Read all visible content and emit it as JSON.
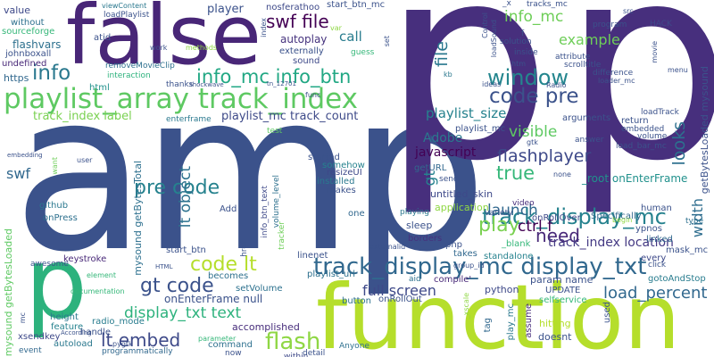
{
  "words": [
    {
      "id": "amp",
      "text": "amp",
      "color": "#3b528b"
    },
    {
      "id": "p_big",
      "text": "p p",
      "color": "#472f7d"
    },
    {
      "id": "false",
      "text": "false",
      "color": "#482677"
    },
    {
      "id": "function",
      "text": "function",
      "color": "#b5de2b"
    },
    {
      "id": "p_small",
      "text": "p",
      "color": "#2db27d"
    },
    {
      "id": "playlist_array_track_index",
      "text": "playlist_array track_index",
      "color": "#5ec962"
    },
    {
      "id": "track_display_mc_display_txt",
      "text": "track_display_mc display_txt",
      "color": "#31688e"
    },
    {
      "id": "track_display_mc",
      "text": "track_display_mc",
      "color": "#26828e"
    },
    {
      "id": "info_mc_info_btn",
      "text": "info_mc info_btn",
      "color": "#22a884"
    },
    {
      "id": "code_pre",
      "text": "code pre",
      "color": "#3b528b"
    },
    {
      "id": "swf_file",
      "text": "swf file",
      "color": "#440154"
    },
    {
      "id": "info",
      "text": "info",
      "color": "#2a788e"
    },
    {
      "id": "window",
      "text": "window",
      "color": "#24868e"
    },
    {
      "id": "flashplayer",
      "text": "flashplayer",
      "color": "#3e4989"
    },
    {
      "id": "need",
      "text": "need",
      "color": "#482878"
    },
    {
      "id": "flash",
      "text": "flash",
      "color": "#8fd744"
    },
    {
      "id": "lt_embed",
      "text": "lt embed",
      "color": "#3e4a89"
    },
    {
      "id": "code_lt",
      "text": "code lt",
      "color": "#b5de2b"
    },
    {
      "id": "gt_code",
      "text": "gt code",
      "color": "#3b528b"
    },
    {
      "id": "pre_code",
      "text": "pre code",
      "color": "#26828e"
    },
    {
      "id": "lt_object",
      "text": "lt object",
      "color": "#2c718e"
    },
    {
      "id": "play",
      "text": "play",
      "color": "#7ad151"
    },
    {
      "id": "ctrl_f",
      "text": "ctrl f",
      "color": "#440154"
    },
    {
      "id": "true",
      "text": "true",
      "color": "#35b779"
    },
    {
      "id": "visible",
      "text": "visible",
      "color": "#5ec962"
    },
    {
      "id": "launch",
      "text": "launch",
      "color": "#31688e"
    },
    {
      "id": "track_index_location",
      "text": "track_index location",
      "color": "#443983"
    },
    {
      "id": "display_txt_text",
      "text": "display_txt text",
      "color": "#2db27d"
    },
    {
      "id": "full_screen",
      "text": "full screen",
      "color": "#3e4989"
    },
    {
      "id": "load_percent",
      "text": "load_percent",
      "color": "#31688e"
    },
    {
      "id": "playlist_size",
      "text": "playlist_size",
      "color": "#26828e"
    },
    {
      "id": "example",
      "text": "example",
      "color": "#6ece58"
    },
    {
      "id": "info_mc",
      "text": "info_mc",
      "color": "#6ece58"
    },
    {
      "id": "call",
      "text": "call",
      "color": "#287c8e"
    },
    {
      "id": "javascript",
      "text": "javascript",
      "color": "#440154"
    },
    {
      "id": "adobe",
      "text": "Adobe",
      "color": "#2a788e"
    },
    {
      "id": "file",
      "text": "file",
      "color": "#2a788e"
    },
    {
      "id": "looks",
      "text": "looks",
      "color": "#2d708e"
    },
    {
      "id": "width",
      "text": "width",
      "color": "#2e6d8e"
    },
    {
      "id": "swf",
      "text": "swf",
      "color": "#31688e"
    },
    {
      "id": "gt",
      "text": "gt",
      "color": "#26828e"
    },
    {
      "id": "onenterframe_null",
      "text": "onEnterFrame null",
      "color": "#3b528b"
    },
    {
      "id": "track_index_label",
      "text": "track_index label",
      "color": "#7ad151"
    },
    {
      "id": "playlist_mc_track_count",
      "text": "playlist_mc track_count",
      "color": "#3e4a89"
    },
    {
      "id": "root_onenterframe",
      "text": "_root onEnterFrame",
      "color": "#21918c"
    },
    {
      "id": "player",
      "text": "player",
      "color": "#3b528b"
    },
    {
      "id": "autoplay",
      "text": "autoplay",
      "color": "#46337e"
    },
    {
      "id": "untitled_skin",
      "text": "untitled_skin",
      "color": "#3e4989"
    },
    {
      "id": "mysound_getbytesloaded",
      "text": "mysound getBytesLoaded",
      "color": "#5ec962"
    },
    {
      "id": "mysound_getbytestotal",
      "text": "mysound getBytesTotal",
      "color": "#2d708e"
    },
    {
      "id": "getbytesloaded_mysound",
      "text": "getBytesLoaded mysound",
      "color": "#3b528b"
    },
    {
      "id": "flashvars",
      "text": "flashvars",
      "color": "#2d708e"
    },
    {
      "id": "value",
      "text": "value",
      "color": "#3e4989"
    },
    {
      "id": "html",
      "text": "html",
      "color": "#21918c"
    },
    {
      "id": "https",
      "text": "https",
      "color": "#31688e"
    },
    {
      "id": "undefined",
      "text": "undefined",
      "color": "#482878"
    },
    {
      "id": "sourceforge",
      "text": "sourceforge",
      "color": "#35b779"
    },
    {
      "id": "without",
      "text": "without",
      "color": "#2d708e"
    },
    {
      "id": "johnboxall",
      "text": "johnboxall",
      "color": "#3b528b"
    },
    {
      "id": "github",
      "text": "github",
      "color": "#2a788e"
    },
    {
      "id": "onpress",
      "text": "onPress",
      "color": "#2d708e"
    },
    {
      "id": "keystroke",
      "text": "keystroke",
      "color": "#482878"
    },
    {
      "id": "awesome",
      "text": "awesome",
      "color": "#3b528b"
    },
    {
      "id": "height",
      "text": "height",
      "color": "#2a788e"
    },
    {
      "id": "feature",
      "text": "feature",
      "color": "#26828e"
    },
    {
      "id": "xsendkey",
      "text": "xsendkey",
      "color": "#3e4989"
    },
    {
      "id": "event",
      "text": "event",
      "color": "#31688e"
    },
    {
      "id": "autoload",
      "text": "autoload",
      "color": "#2a788e"
    },
    {
      "id": "programmatically",
      "text": "programmatically",
      "color": "#31688e"
    },
    {
      "id": "command",
      "text": "command",
      "color": "#2d708e"
    },
    {
      "id": "accomplished",
      "text": "accomplished",
      "color": "#472d7b"
    },
    {
      "id": "radio_mode",
      "text": "radio_mode",
      "color": "#287c8e"
    },
    {
      "id": "handle",
      "text": "handle",
      "color": "#3b528b"
    },
    {
      "id": "setvolume",
      "text": "setVolume",
      "color": "#2c718e"
    },
    {
      "id": "becomes",
      "text": "becomes",
      "color": "#2d708e"
    },
    {
      "id": "start_btn",
      "text": "start_btn",
      "color": "#3b528b"
    },
    {
      "id": "linenet",
      "text": "linenet",
      "color": "#3b528b"
    },
    {
      "id": "playlist_url",
      "text": "playlist_url",
      "color": "#2d708e"
    },
    {
      "id": "sleep",
      "text": "sleep",
      "color": "#3b528b"
    },
    {
      "id": "one",
      "text": "one",
      "color": "#31688e"
    },
    {
      "id": "borders",
      "text": "borders",
      "color": "#46337e"
    },
    {
      "id": "php",
      "text": "php",
      "color": "#3b528b"
    },
    {
      "id": "takes",
      "text": "takes",
      "color": "#31688e"
    },
    {
      "id": "standalone",
      "text": "standalone",
      "color": "#26828e"
    },
    {
      "id": "blank",
      "text": "_blank",
      "color": "#35b779"
    },
    {
      "id": "python",
      "text": "python",
      "color": "#3e4989"
    },
    {
      "id": "update",
      "text": "UPDATE",
      "color": "#3b528b"
    },
    {
      "id": "param_name",
      "text": "param name",
      "color": "#3b528b"
    },
    {
      "id": "compile",
      "text": "compile'",
      "color": "#482878"
    },
    {
      "id": "aid",
      "text": "aid",
      "color": "#2d708e"
    },
    {
      "id": "button",
      "text": "button",
      "color": "#2d708e"
    },
    {
      "id": "onrollout",
      "text": "onRollOut",
      "color": "#3b528b"
    },
    {
      "id": "application",
      "text": "application",
      "color": "#8fd744"
    },
    {
      "id": "makes",
      "text": "makes",
      "color": "#3b528b"
    },
    {
      "id": "installed",
      "text": "installed",
      "color": "#2a788e"
    },
    {
      "id": "resizeui",
      "text": "resizeUI",
      "color": "#3e4989"
    },
    {
      "id": "started",
      "text": "started",
      "color": "#3b528b"
    },
    {
      "id": "somehow",
      "text": "somehow",
      "color": "#26828e"
    },
    {
      "id": "send",
      "text": "send",
      "color": "#3b528b"
    },
    {
      "id": "geturl",
      "text": "getURL",
      "color": "#31688e"
    },
    {
      "id": "playing",
      "text": "playing",
      "color": "#2a788e"
    },
    {
      "id": "video",
      "text": "video",
      "color": "#472d7b"
    },
    {
      "id": "variety",
      "text": "variety",
      "color": "#3b528b"
    },
    {
      "id": "onrollover",
      "text": "onRollOver",
      "color": "#3e4989"
    },
    {
      "id": "ypnos",
      "text": "ypnos",
      "color": "#3b528b"
    },
    {
      "id": "linked",
      "text": "linked",
      "color": "#31688e"
    },
    {
      "id": "human",
      "text": "human",
      "color": "#3b528b"
    },
    {
      "id": "specifically",
      "text": "Specifically",
      "color": "#31688e"
    },
    {
      "id": "type",
      "text": "type",
      "color": "#2d708e"
    },
    {
      "id": "every",
      "text": "every",
      "color": "#3e4989"
    },
    {
      "id": "mask_mc",
      "text": "mask_mc",
      "color": "#3b528b"
    },
    {
      "id": "click",
      "text": "click",
      "color": "#3b528b"
    },
    {
      "id": "gotoandstop",
      "text": "gotoAndStop",
      "color": "#287c8e"
    },
    {
      "id": "selfservice",
      "text": "selfservice",
      "color": "#35b779"
    },
    {
      "id": "hitting",
      "text": "hitting",
      "color": "#b5de2b"
    },
    {
      "id": "doesnt",
      "text": "doesnt",
      "color": "#3b528b"
    },
    {
      "id": "assume",
      "text": "assume",
      "color": "#472d7b"
    },
    {
      "id": "anyone",
      "text": "Anyone",
      "color": "#2d708e"
    },
    {
      "id": "tag",
      "text": "tag",
      "color": "#31688e"
    },
    {
      "id": "play_mc",
      "text": "play_mc",
      "color": "#2a788e"
    },
    {
      "id": "used",
      "text": "used",
      "color": "#3b528b"
    },
    {
      "id": "externally",
      "text": "externally",
      "color": "#3b528b"
    },
    {
      "id": "sound",
      "text": "sound",
      "color": "#3e4989"
    },
    {
      "id": "within",
      "text": "within",
      "color": "#3e4989"
    },
    {
      "id": "detail",
      "text": "detail",
      "color": "#3b528b"
    },
    {
      "id": "now",
      "text": "now",
      "color": "#3b528b"
    },
    {
      "id": "parameter",
      "text": "parameter",
      "color": "#35b779"
    },
    {
      "id": "nosferathoo",
      "text": "nosferathoo",
      "color": "#3e4989"
    },
    {
      "id": "start_btn_mc",
      "text": "start_btn_mc",
      "color": "#3b528b"
    },
    {
      "id": "viewcontent",
      "text": "viewContent",
      "color": "#2a788e"
    },
    {
      "id": "loadplaylist",
      "text": "loadPlaylist",
      "color": "#3b528b"
    },
    {
      "id": "atid",
      "text": "atid",
      "color": "#3b528b"
    },
    {
      "id": "work",
      "text": "work",
      "color": "#3b528b"
    },
    {
      "id": "methods",
      "text": "methods",
      "color": "#8fd744"
    },
    {
      "id": "removemovieclip",
      "text": "removeMovieClip",
      "color": "#2d708e"
    },
    {
      "id": "interaction",
      "text": "interaction",
      "color": "#2db27d"
    },
    {
      "id": "thanks",
      "text": "thanks",
      "color": "#3b528b"
    },
    {
      "id": "shockwave",
      "text": "shockwave",
      "color": "#3b528b"
    },
    {
      "id": "tn_12701",
      "text": "tn_12701",
      "color": "#3b528b"
    },
    {
      "id": "guess",
      "text": "guess",
      "color": "#35b779"
    },
    {
      "id": "enterframe",
      "text": "enterframe",
      "color": "#2a788e"
    },
    {
      "id": "test",
      "text": "test",
      "color": "#5ec962"
    },
    {
      "id": "embedding",
      "text": "embedding",
      "color": "#3b528b"
    },
    {
      "id": "user",
      "text": "user",
      "color": "#3b528b"
    },
    {
      "id": "want",
      "text": "want",
      "color": "#6ece58"
    },
    {
      "id": "add",
      "text": "Add",
      "color": "#3b528b"
    },
    {
      "id": "info_btn_text",
      "text": "info_btn_text",
      "color": "#3e4989"
    },
    {
      "id": "volume_level",
      "text": "volume_level",
      "color": "#2d708e"
    },
    {
      "id": "tracker",
      "text": "tracker",
      "color": "#6ece58"
    },
    {
      "id": "href",
      "text": "href",
      "color": "#3b528b"
    },
    {
      "id": "kb",
      "text": "kb",
      "color": "#2a788e"
    },
    {
      "id": "ideas",
      "text": "ideas",
      "color": "#3b528b"
    },
    {
      "id": "radio",
      "text": "Radio",
      "color": "#3b528b"
    },
    {
      "id": "htm",
      "text": "htm",
      "color": "#3b528b"
    },
    {
      "id": "solution",
      "text": "solution",
      "color": "#3b528b"
    },
    {
      "id": "inside",
      "text": "inside",
      "color": "#3b528b"
    },
    {
      "id": "attribute",
      "text": "attribute",
      "color": "#3b528b"
    },
    {
      "id": "scrolltitle",
      "text": "scrolltitle",
      "color": "#3b528b"
    },
    {
      "id": "difference",
      "text": "difference",
      "color": "#3b528b"
    },
    {
      "id": "loader_mc",
      "text": "loader_mc",
      "color": "#3b528b"
    },
    {
      "id": "hack",
      "text": "HACK",
      "color": "#3e4989"
    },
    {
      "id": "program",
      "text": "program",
      "color": "#3b528b"
    },
    {
      "id": "tracks_mc",
      "text": "tracks_mc",
      "color": "#3b528b"
    },
    {
      "id": "x_",
      "text": "_x",
      "color": "#3b528b"
    },
    {
      "id": "src",
      "text": "src",
      "color": "#3b528b"
    },
    {
      "id": "movie",
      "text": "movie",
      "color": "#3b528b"
    },
    {
      "id": "menu",
      "text": "menu",
      "color": "#3b528b"
    },
    {
      "id": "loadtrack",
      "text": "loadTrack",
      "color": "#3b528b"
    },
    {
      "id": "return",
      "text": "return",
      "color": "#3b528b"
    },
    {
      "id": "embedded",
      "text": "embedded",
      "color": "#3b528b"
    },
    {
      "id": "load_bar_mc",
      "text": "load_bar_mc",
      "color": "#3b528b"
    },
    {
      "id": "volume",
      "text": "volume",
      "color": "#3b528b"
    },
    {
      "id": "answer",
      "text": "answer",
      "color": "#3b528b"
    },
    {
      "id": "arguments",
      "text": "arguments",
      "color": "#3b528b"
    },
    {
      "id": "playlist_mc",
      "text": "playlist_mc",
      "color": "#3b528b"
    },
    {
      "id": "gtk",
      "text": "gtk",
      "color": "#3b528b"
    },
    {
      "id": "none",
      "text": "none",
      "color": "#3b528b"
    },
    {
      "id": "begin",
      "text": "begin",
      "color": "#8fd744"
    },
    {
      "id": "documentation",
      "text": "documentation",
      "color": "#35b779"
    },
    {
      "id": "element",
      "text": "element",
      "color": "#35b779"
    },
    {
      "id": "according",
      "text": "According",
      "color": "#3b528b"
    },
    {
      "id": "pygtk",
      "text": "pygtk",
      "color": "#3b528b"
    },
    {
      "id": "mc_",
      "text": "mc",
      "color": "#3b528b"
    },
    {
      "id": "html_upper",
      "text": "HTML",
      "color": "#3b528b"
    },
    {
      "id": "func",
      "text": "func",
      "color": "#3b528b"
    },
    {
      "id": "control",
      "text": "Control",
      "color": "#3b528b"
    },
    {
      "id": "loadsound",
      "text": "loadSound",
      "color": "#3b528b"
    },
    {
      "id": "set",
      "text": "set",
      "color": "#3b528b"
    },
    {
      "id": "var",
      "text": "var",
      "color": "#8fd744"
    },
    {
      "id": "index",
      "text": "index",
      "color": "#3b528b"
    },
    {
      "id": "group_id",
      "text": "group_id",
      "color": "#3b528b"
    },
    {
      "id": "externalid",
      "text": "externalid",
      "color": "#3b528b"
    },
    {
      "id": "xscale",
      "text": "_xscale",
      "color": "#8fd744"
    },
    {
      "id": "f_",
      "text": "f",
      "color": "#3b528b"
    }
  ]
}
